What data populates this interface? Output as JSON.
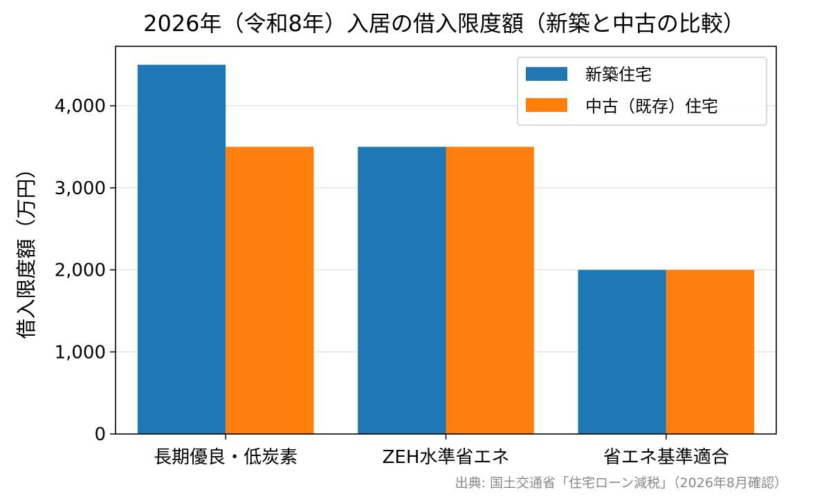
{
  "chart_data": {
    "type": "bar",
    "title": "2026年（令和8年）入居の借入限度額（新築と中古の比較）",
    "xlabel": "",
    "ylabel": "借入限度額（万円）",
    "categories": [
      "長期優良・低炭素",
      "ZEH水準省エネ",
      "省エネ基準適合"
    ],
    "series": [
      {
        "name": "新築住宅",
        "values": [
          4500,
          3500,
          2000
        ],
        "color": "#1f77b4"
      },
      {
        "name": "中古（既存）住宅",
        "values": [
          3500,
          3500,
          2000
        ],
        "color": "#ff7f0e"
      }
    ],
    "ylim": [
      0,
      4725
    ],
    "yticks": [
      0,
      1000,
      2000,
      3000,
      4000
    ],
    "ytick_labels": [
      "0",
      "1,000",
      "2,000",
      "3,000",
      "4,000"
    ],
    "grid": "y",
    "legend_position": "upper right",
    "source": "出典: 国土交通省「住宅ローン減税」（2026年8月確認）"
  }
}
